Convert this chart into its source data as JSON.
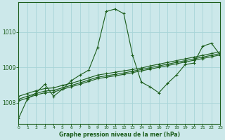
{
  "title": "Graphe pression niveau de la mer (hPa)",
  "bg_color": "#cce8ea",
  "grid_color": "#a8d4d8",
  "line_color": "#1a5c1a",
  "xlim": [
    0,
    23
  ],
  "ylim": [
    1007.4,
    1010.85
  ],
  "yticks": [
    1008,
    1009,
    1010
  ],
  "xticks": [
    0,
    1,
    2,
    3,
    4,
    5,
    6,
    7,
    8,
    9,
    10,
    11,
    12,
    13,
    14,
    15,
    16,
    17,
    18,
    19,
    20,
    21,
    22,
    23
  ],
  "main_x": [
    0,
    1,
    2,
    3,
    4,
    5,
    6,
    7,
    8,
    9,
    10,
    11,
    12,
    13,
    14,
    15,
    16,
    17,
    18,
    19,
    20,
    21,
    22,
    23
  ],
  "main_y": [
    1007.55,
    1008.1,
    1008.28,
    1008.52,
    1008.18,
    1008.38,
    1008.62,
    1008.78,
    1008.92,
    1009.55,
    1010.58,
    1010.65,
    1010.52,
    1009.35,
    1008.58,
    1008.45,
    1008.28,
    1008.55,
    1008.78,
    1009.08,
    1009.12,
    1009.6,
    1009.68,
    1009.35
  ],
  "trend_a_x": [
    0,
    1,
    2,
    3,
    4,
    5,
    6,
    7,
    8,
    9,
    10,
    11,
    12,
    13,
    14,
    15,
    16,
    17,
    18,
    19,
    20,
    21,
    22,
    23
  ],
  "trend_a_y": [
    1008.05,
    1008.13,
    1008.22,
    1008.28,
    1008.3,
    1008.38,
    1008.45,
    1008.52,
    1008.6,
    1008.68,
    1008.72,
    1008.76,
    1008.8,
    1008.85,
    1008.9,
    1008.95,
    1009.0,
    1009.05,
    1009.1,
    1009.15,
    1009.2,
    1009.25,
    1009.3,
    1009.35
  ],
  "trend_b_x": [
    0,
    1,
    2,
    3,
    4,
    5,
    6,
    7,
    8,
    9,
    10,
    11,
    12,
    13,
    14,
    15,
    16,
    17,
    18,
    19,
    20,
    21,
    22,
    23
  ],
  "trend_b_y": [
    1008.1,
    1008.18,
    1008.26,
    1008.33,
    1008.35,
    1008.42,
    1008.49,
    1008.56,
    1008.64,
    1008.72,
    1008.76,
    1008.8,
    1008.84,
    1008.89,
    1008.94,
    1008.99,
    1009.04,
    1009.09,
    1009.14,
    1009.19,
    1009.24,
    1009.29,
    1009.34,
    1009.39
  ],
  "trend_c_x": [
    0,
    1,
    2,
    3,
    4,
    5,
    6,
    7,
    8,
    9,
    10,
    11,
    12,
    13,
    14,
    15,
    16,
    17,
    18,
    19,
    20,
    21,
    22,
    23
  ],
  "trend_c_y": [
    1008.18,
    1008.26,
    1008.34,
    1008.4,
    1008.42,
    1008.49,
    1008.55,
    1008.62,
    1008.7,
    1008.78,
    1008.82,
    1008.86,
    1008.9,
    1008.94,
    1008.98,
    1009.04,
    1009.09,
    1009.14,
    1009.19,
    1009.24,
    1009.29,
    1009.34,
    1009.39,
    1009.44
  ]
}
